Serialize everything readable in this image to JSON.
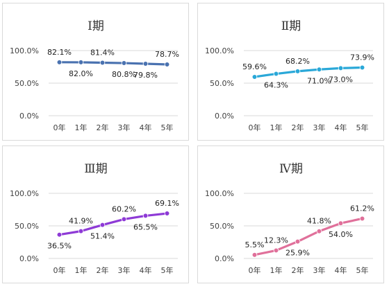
{
  "chart_data": [
    {
      "type": "line",
      "title": "Ⅰ期",
      "categories": [
        "0年",
        "1年",
        "2年",
        "3年",
        "4年",
        "5年"
      ],
      "values": [
        82.1,
        82.0,
        81.4,
        80.8,
        79.8,
        78.7
      ],
      "value_labels": [
        "82.1%",
        "82.0%",
        "81.4%",
        "80.8%",
        "79.8%",
        "78.7%"
      ],
      "yticks": [
        "0.0%",
        "50.0%",
        "100.0%"
      ],
      "ylim": [
        0,
        100
      ],
      "grid": true,
      "color": "#4a72b0"
    },
    {
      "type": "line",
      "title": "Ⅱ期",
      "categories": [
        "0年",
        "1年",
        "2年",
        "3年",
        "4年",
        "5年"
      ],
      "values": [
        59.6,
        64.3,
        68.2,
        71.0,
        73.0,
        73.9
      ],
      "value_labels": [
        "59.6%",
        "64.3%",
        "68.2%",
        "71.0%",
        "73.0%",
        "73.9%"
      ],
      "yticks": [
        "0.0%",
        "50.0%",
        "100.0%"
      ],
      "ylim": [
        0,
        100
      ],
      "grid": true,
      "color": "#2aa8d8"
    },
    {
      "type": "line",
      "title": "Ⅲ期",
      "categories": [
        "0年",
        "1年",
        "2年",
        "3年",
        "4年",
        "5年"
      ],
      "values": [
        36.5,
        41.9,
        51.4,
        60.2,
        65.5,
        69.1
      ],
      "value_labels": [
        "36.5%",
        "41.9%",
        "51.4%",
        "60.2%",
        "65.5%",
        "69.1%"
      ],
      "yticks": [
        "0.0%",
        "50.0%",
        "100.0%"
      ],
      "ylim": [
        0,
        100
      ],
      "grid": true,
      "color": "#8e3ad6"
    },
    {
      "type": "line",
      "title": "Ⅳ期",
      "categories": [
        "0年",
        "1年",
        "2年",
        "3年",
        "4年",
        "5年"
      ],
      "values": [
        5.5,
        12.3,
        25.9,
        41.8,
        54.0,
        61.2
      ],
      "value_labels": [
        "5.5%",
        "12.3%",
        "25.9%",
        "41.8%",
        "54.0%",
        "61.2%"
      ],
      "yticks": [
        "0.0%",
        "50.0%",
        "100.0%"
      ],
      "ylim": [
        0,
        100
      ],
      "grid": true,
      "color": "#e0709a"
    }
  ]
}
